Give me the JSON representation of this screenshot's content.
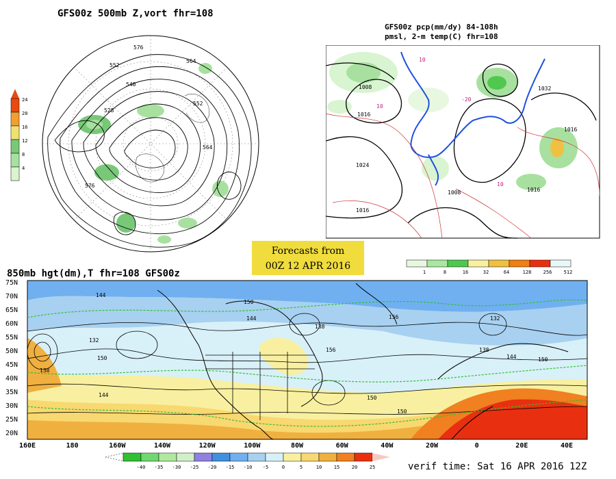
{
  "panel_500mb": {
    "title": "GFS00z  500mb Z,vort   fhr=108",
    "colorbar_ticks": [
      "24",
      "20",
      "16",
      "12",
      "8",
      "4"
    ],
    "colorbar_colors": [
      "#e84a10",
      "#f0a030",
      "#f0e070",
      "#78c878",
      "#a8e0a0",
      "#d8f4d0"
    ],
    "contour_labels": [
      "576",
      "564",
      "552",
      "540",
      "528",
      "552",
      "564",
      "576"
    ]
  },
  "panel_pcp": {
    "title_line1": "GFS00z pcp(mm/dy) 84-108h",
    "title_line2": "pmsl, 2-m temp(C)  fhr=108",
    "isobar_labels": [
      "1008",
      "1016",
      "1024",
      "1032",
      "1016",
      "1016",
      "1008",
      "1016"
    ],
    "temp_labels": [
      "10",
      "10",
      "-20",
      "10"
    ]
  },
  "forecast_banner": {
    "line1": "Forecasts from",
    "line2": "00Z 12 APR 2016"
  },
  "pcp_colorbar": {
    "ticks": [
      "1",
      "8",
      "16",
      "32",
      "64",
      "128",
      "256",
      "512"
    ],
    "colors": [
      "#e8f8e0",
      "#a8e8a0",
      "#50c850",
      "#f8f0a0",
      "#f0c040",
      "#f08010",
      "#e83010",
      "#e8f8f8"
    ]
  },
  "panel_850mb": {
    "title": "850mb hgt(dm),T  fhr=108 GFS00z",
    "lat_labels": [
      "75N",
      "70N",
      "65N",
      "60N",
      "55N",
      "50N",
      "45N",
      "40N",
      "35N",
      "30N",
      "25N",
      "20N"
    ],
    "lon_labels": [
      "160E",
      "180",
      "160W",
      "140W",
      "120W",
      "100W",
      "80W",
      "60W",
      "40W",
      "20W",
      "0",
      "20E",
      "40E"
    ],
    "height_labels": [
      "138",
      "144",
      "150",
      "144",
      "150",
      "138",
      "156",
      "150",
      "144",
      "150",
      "132",
      "144",
      "150",
      "138",
      "132",
      "156"
    ],
    "temp_colorbar_ticks": [
      "-40",
      "-35",
      "-30",
      "-25",
      "-20",
      "-15",
      "-10",
      "-5",
      "0",
      "5",
      "10",
      "15",
      "20",
      "25"
    ],
    "temp_colorbar_colors": [
      "#30c030",
      "#70d870",
      "#b0e8a0",
      "#d0f0c8",
      "#9080e0",
      "#4090e0",
      "#70b0f0",
      "#a8d0f0",
      "#d8f0f8",
      "#f8f0a0",
      "#f8d870",
      "#f0b040",
      "#f08020",
      "#e83010"
    ]
  },
  "verif_time": "verif time: Sat 16 APR 2016 12Z"
}
